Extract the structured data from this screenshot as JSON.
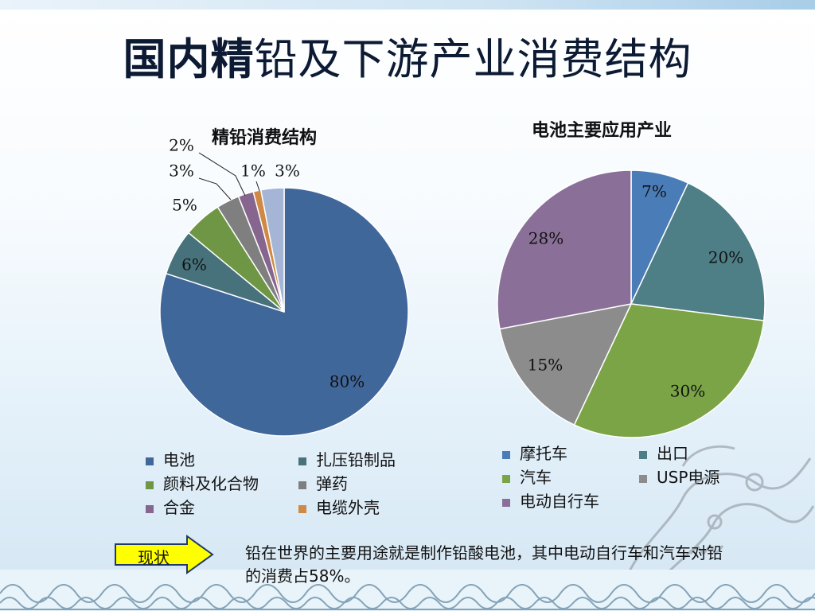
{
  "title_bold": "国内精",
  "title_rest": "铅及下游产业消费结构",
  "chart_data": [
    {
      "type": "pie",
      "title": "精铅消费结构",
      "slices": [
        {
          "label": "电池",
          "value": 80,
          "display": "80%",
          "color": "#40679a"
        },
        {
          "label": "扎压铅制品",
          "value": 6,
          "display": "6%",
          "color": "#47727c"
        },
        {
          "label": "颜料及化合物",
          "value": 5,
          "display": "5%",
          "color": "#6e9645"
        },
        {
          "label": "弹药",
          "value": 3,
          "display": "3%",
          "color": "#7f7f7f"
        },
        {
          "label": "合金",
          "value": 2,
          "display": "2%",
          "color": "#86668f"
        },
        {
          "label": "电缆外壳",
          "value": 1,
          "display": "1%",
          "color": "#cf8944"
        },
        {
          "label": "",
          "value": 3,
          "display": "3%",
          "color": "#a4b5d5"
        }
      ],
      "legend": [
        "电池",
        "扎压铅制品",
        "颜料及化合物",
        "弹药",
        "合金",
        "电缆外壳"
      ],
      "legend_position": "bottom"
    },
    {
      "type": "pie",
      "title": "电池主要应用产业",
      "slices": [
        {
          "label": "摩托车",
          "value": 7,
          "display": "7%",
          "color": "#4a7db8"
        },
        {
          "label": "出口",
          "value": 20,
          "display": "20%",
          "color": "#4e7f87"
        },
        {
          "label": "汽车",
          "value": 30,
          "display": "30%",
          "color": "#7aa446"
        },
        {
          "label": "USP电源",
          "value": 15,
          "display": "15%",
          "color": "#8c8c8c"
        },
        {
          "label": "电动自行车",
          "value": 28,
          "display": "28%",
          "color": "#8a7098"
        }
      ],
      "legend": [
        "摩托车",
        "出口",
        "汽车",
        "USP电源",
        "电动自行车"
      ],
      "legend_position": "bottom"
    }
  ],
  "callout": {
    "label": "现状"
  },
  "note": "铅在世界的主要用途就是制作铅酸电池，其中电动自行车和汽车对铅的消费占58%。"
}
